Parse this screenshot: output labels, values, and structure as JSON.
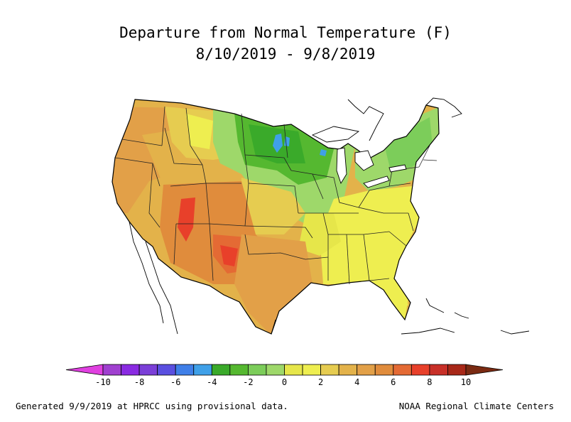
{
  "map": {
    "title": "Departure from Normal Temperature (F)",
    "subtitle": "8/10/2019 - 9/8/2019",
    "region": "Contiguous United States",
    "legend": {
      "ticks": [
        "-10",
        "-8",
        "-6",
        "-4",
        "-2",
        "0",
        "2",
        "4",
        "6",
        "8",
        "10"
      ],
      "bins": [
        {
          "from": -12,
          "to": -10,
          "color": "#e040e0"
        },
        {
          "from": -10,
          "to": -9,
          "color": "#a040d0"
        },
        {
          "from": -9,
          "to": -8,
          "color": "#8a2be2"
        },
        {
          "from": -8,
          "to": -7,
          "color": "#7b3fd8"
        },
        {
          "from": -7,
          "to": -6,
          "color": "#5a4fe0"
        },
        {
          "from": -6,
          "to": -5,
          "color": "#3f7fe8"
        },
        {
          "from": -5,
          "to": -4,
          "color": "#3fa0e8"
        },
        {
          "from": -4,
          "to": -3,
          "color": "#3aaa2a"
        },
        {
          "from": -3,
          "to": -2,
          "color": "#55b830"
        },
        {
          "from": -2,
          "to": -1,
          "color": "#7ccd5a"
        },
        {
          "from": -1,
          "to": 0,
          "color": "#9ed86a"
        },
        {
          "from": 0,
          "to": 1,
          "color": "#e6e64a"
        },
        {
          "from": 1,
          "to": 2,
          "color": "#eeee50"
        },
        {
          "from": 2,
          "to": 3,
          "color": "#e6cc50"
        },
        {
          "from": 3,
          "to": 4,
          "color": "#e3b24a"
        },
        {
          "from": 4,
          "to": 5,
          "color": "#e2a048"
        },
        {
          "from": 5,
          "to": 6,
          "color": "#e08c3c"
        },
        {
          "from": 6,
          "to": 7,
          "color": "#e46a34"
        },
        {
          "from": 7,
          "to": 8,
          "color": "#e8402a"
        },
        {
          "from": 8,
          "to": 9,
          "color": "#c83028"
        },
        {
          "from": 9,
          "to": 10,
          "color": "#a82818"
        },
        {
          "from": 10,
          "to": 12,
          "color": "#7a2a12"
        }
      ]
    },
    "footer_left": "Generated 9/9/2019 at HPRCC using provisional data.",
    "footer_right": "NOAA Regional Climate Centers"
  }
}
